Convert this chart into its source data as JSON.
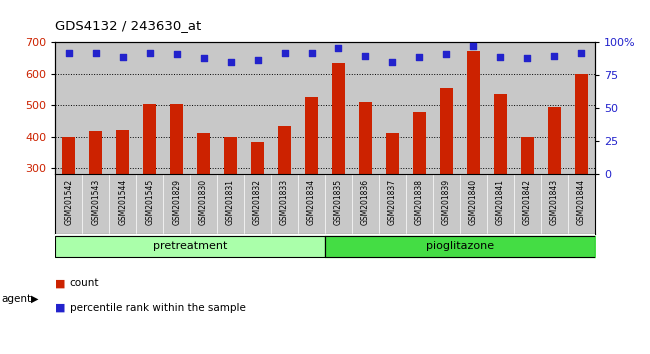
{
  "title": "GDS4132 / 243630_at",
  "samples": [
    "GSM201542",
    "GSM201543",
    "GSM201544",
    "GSM201545",
    "GSM201829",
    "GSM201830",
    "GSM201831",
    "GSM201832",
    "GSM201833",
    "GSM201834",
    "GSM201835",
    "GSM201836",
    "GSM201837",
    "GSM201838",
    "GSM201839",
    "GSM201840",
    "GSM201841",
    "GSM201842",
    "GSM201843",
    "GSM201844"
  ],
  "counts": [
    400,
    418,
    422,
    505,
    505,
    412,
    400,
    384,
    433,
    528,
    635,
    512,
    413,
    479,
    555,
    672,
    536,
    400,
    494,
    600
  ],
  "percentiles": [
    92,
    92,
    89,
    92,
    91,
    88,
    85,
    87,
    92,
    92,
    96,
    90,
    85,
    89,
    91,
    97,
    89,
    88,
    90,
    92
  ],
  "pretreatment_count": 10,
  "pioglitazone_count": 10,
  "bar_color": "#cc2200",
  "dot_color": "#2222cc",
  "ylim_left": [
    280,
    700
  ],
  "ylim_right": [
    0,
    100
  ],
  "yticks_left": [
    300,
    400,
    500,
    600,
    700
  ],
  "yticks_right": [
    0,
    25,
    50,
    75,
    100
  ],
  "grid_color": "#000000",
  "bg_color": "#c8c8c8",
  "pretreatment_color": "#aaffaa",
  "pioglitazone_color": "#44dd44",
  "legend_count_label": "count",
  "legend_pct_label": "percentile rank within the sample"
}
